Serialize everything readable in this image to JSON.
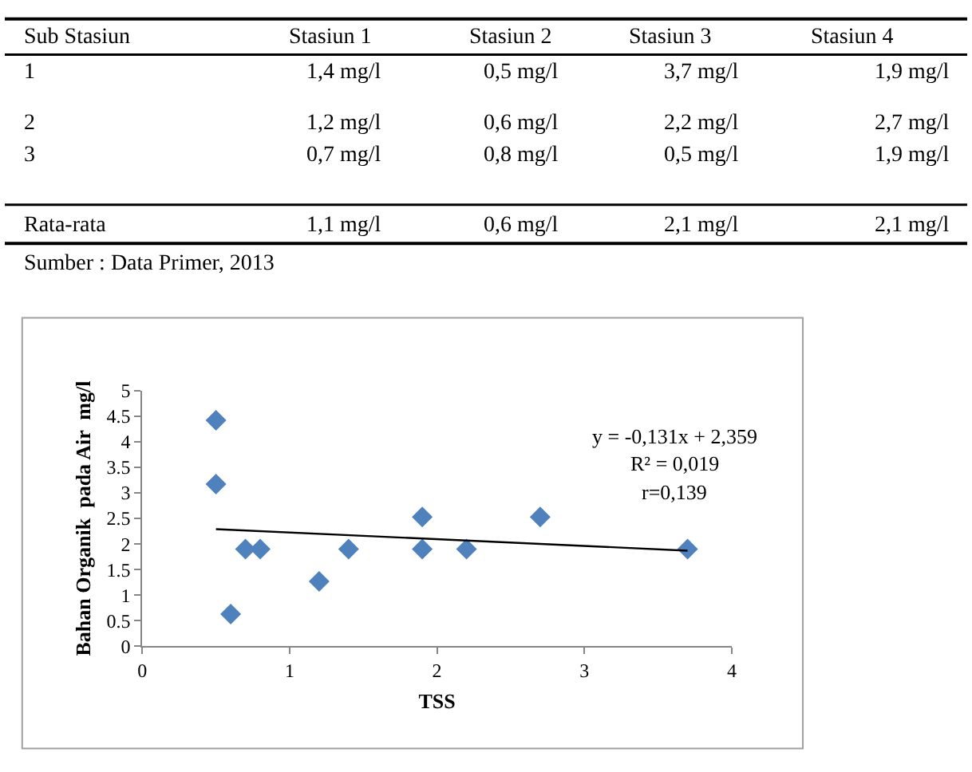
{
  "chart_data": [
    {
      "type": "other",
      "categories": [
        "Sub Stasiun",
        "Stasiun 1",
        "Stasiun 2",
        "Stasiun 3",
        "Stasiun 4"
      ],
      "annotations": [
        "1",
        "1,4 mg/l",
        "0,5 mg/l",
        "3,7 mg/l",
        "1,9 mg/l",
        "2",
        "1,2 mg/l",
        "0,6 mg/l",
        "2,2 mg/l",
        "2,7 mg/l",
        "3",
        "0,7 mg/l",
        "0,8 mg/l",
        "0,5 mg/l",
        "1,9 mg/l",
        "Rata-rata",
        "1,1 mg/l",
        "0,6 mg/l",
        "2,1 mg/l",
        "2,1 mg/l",
        "Sumber : Data Primer, 2013"
      ]
    },
    {
      "type": "scatter",
      "xlabel": "TSS",
      "ylabel": "Bahan Organik  pada Air  mg/l",
      "xlim": [
        0,
        4
      ],
      "xticks": [
        0,
        1,
        2,
        3,
        4
      ],
      "ylim": [
        0,
        5
      ],
      "yticks": [
        0,
        0.5,
        1,
        1.5,
        2,
        2.5,
        3,
        3.5,
        4,
        4.5,
        5
      ],
      "series": [
        {
          "type": "scatter",
          "marker": "diamond",
          "color": "#4f81bd",
          "x": [
            0.5,
            0.5,
            0.6,
            0.7,
            0.8,
            1.2,
            1.4,
            1.9,
            1.9,
            2.2,
            2.7,
            3.7
          ],
          "values": [
            4.42,
            3.17,
            0.63,
            1.9,
            1.9,
            1.27,
            1.9,
            2.53,
            1.9,
            1.9,
            2.53,
            1.9
          ]
        },
        {
          "type": "line",
          "color": "#000000",
          "x": [
            0.5,
            3.7
          ],
          "values": [
            2.29,
            1.87
          ]
        }
      ],
      "annotations": [
        "y = -0,131x + 2,359",
        "R² = 0,019",
        "r=0,139"
      ]
    }
  ]
}
